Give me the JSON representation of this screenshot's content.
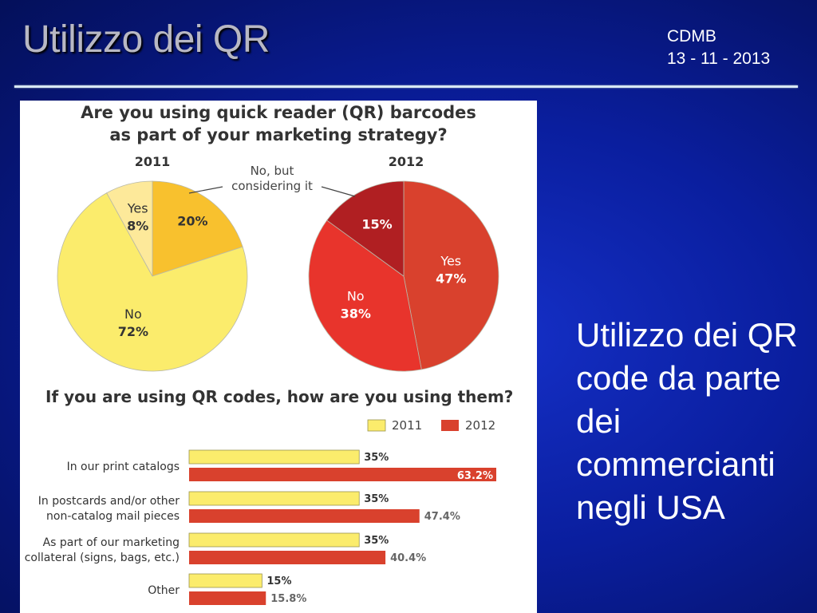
{
  "slide": {
    "title": "Utilizzo dei QR",
    "meta_line1": "CDMB",
    "meta_line2": "13 - 11 - 2013",
    "caption": "Utilizzo dei QR code da parte dei commercianti negli USA"
  },
  "colors": {
    "yellow": "#fbec6c",
    "yellow_light": "#fde99a",
    "yellow_dark": "#f8c12e",
    "red": "#e8342c",
    "red_main": "#d9412d",
    "red_dark": "#b01f22",
    "text_dark": "#333333"
  },
  "chart_data": [
    {
      "type": "pie",
      "title": "Are you using quick reader (QR) barcodes as part of your marketing strategy?",
      "subtitle": "2011",
      "callout": "No, but considering it",
      "slices": [
        {
          "label": "Yes",
          "value": 8
        },
        {
          "label": "No, but considering it",
          "value": 20
        },
        {
          "label": "No",
          "value": 72
        }
      ]
    },
    {
      "type": "pie",
      "subtitle": "2012",
      "slices": [
        {
          "label": "Yes",
          "value": 47
        },
        {
          "label": "No",
          "value": 38
        },
        {
          "label": "No, but considering it",
          "value": 15
        }
      ]
    },
    {
      "type": "bar",
      "orientation": "horizontal",
      "title": "If you are using QR codes, how are you using them?",
      "categories": [
        "In our print catalogs",
        "In postcards and/or other non-catalog mail pieces",
        "As part of our marketing collateral (signs, bags, etc.)",
        "Other"
      ],
      "category_lines": [
        [
          "In our print catalogs"
        ],
        [
          "In postcards and/or other",
          "non-catalog mail pieces"
        ],
        [
          "As part of our marketing",
          "collateral (signs, bags, etc.)"
        ],
        [
          "Other"
        ]
      ],
      "series": [
        {
          "name": "2011",
          "values": [
            35,
            35,
            35,
            15
          ],
          "labels": [
            "35%",
            "35%",
            "35%",
            "15%"
          ]
        },
        {
          "name": "2012",
          "values": [
            63.2,
            47.4,
            40.4,
            15.8
          ],
          "labels": [
            "63.2%",
            "47.4%",
            "40.4%",
            "15.8%"
          ]
        }
      ],
      "legend": "top-right"
    }
  ]
}
